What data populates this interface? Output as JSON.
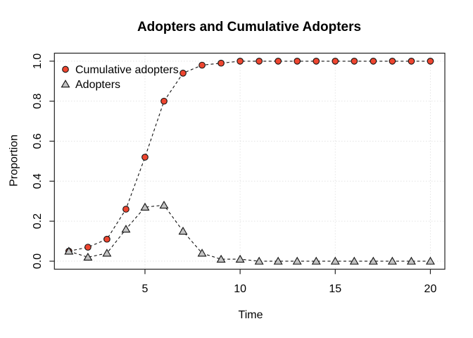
{
  "page": {
    "background": "#ffffff"
  },
  "chart_data": {
    "type": "line",
    "title": "Adopters and Cumulative Adopters",
    "xlabel": "Time",
    "ylabel": "Proportion",
    "x": [
      1,
      2,
      3,
      4,
      5,
      6,
      7,
      8,
      9,
      10,
      11,
      12,
      13,
      14,
      15,
      16,
      17,
      18,
      19,
      20
    ],
    "series": [
      {
        "name": "Cumulative adopters",
        "marker": "circle",
        "marker_fill": "#ee4630",
        "line_style": "dashed",
        "values": [
          0.05,
          0.07,
          0.11,
          0.26,
          0.52,
          0.8,
          0.94,
          0.98,
          0.99,
          1.0,
          1.0,
          1.0,
          1.0,
          1.0,
          1.0,
          1.0,
          1.0,
          1.0,
          1.0,
          1.0
        ]
      },
      {
        "name": "Adopters",
        "marker": "triangle-up",
        "marker_fill": "#c3c3c3",
        "line_style": "dashed",
        "values": [
          0.05,
          0.02,
          0.04,
          0.16,
          0.27,
          0.28,
          0.15,
          0.04,
          0.01,
          0.01,
          0.0,
          0.0,
          0.0,
          0.0,
          0.0,
          0.0,
          0.0,
          0.0,
          0.0,
          0.0
        ]
      }
    ],
    "x_ticks": {
      "values": [
        5,
        10,
        15,
        20
      ],
      "labels": [
        "5",
        "10",
        "15",
        "20"
      ]
    },
    "y_ticks": {
      "values": [
        0.0,
        0.2,
        0.4,
        0.6,
        0.8,
        1.0
      ],
      "labels": [
        "0.0",
        "0.2",
        "0.4",
        "0.6",
        "0.8",
        "1.0"
      ]
    },
    "xlim": [
      0.24,
      20.76
    ],
    "ylim": [
      -0.04,
      1.04
    ],
    "grid": "dotted-at-ticks",
    "legend_position": "top-left",
    "colors": {
      "series_line": "#111111",
      "marker_stroke": "#111111",
      "grid": "#d6d6d6",
      "frame": "#222222",
      "text": "#000000"
    }
  }
}
